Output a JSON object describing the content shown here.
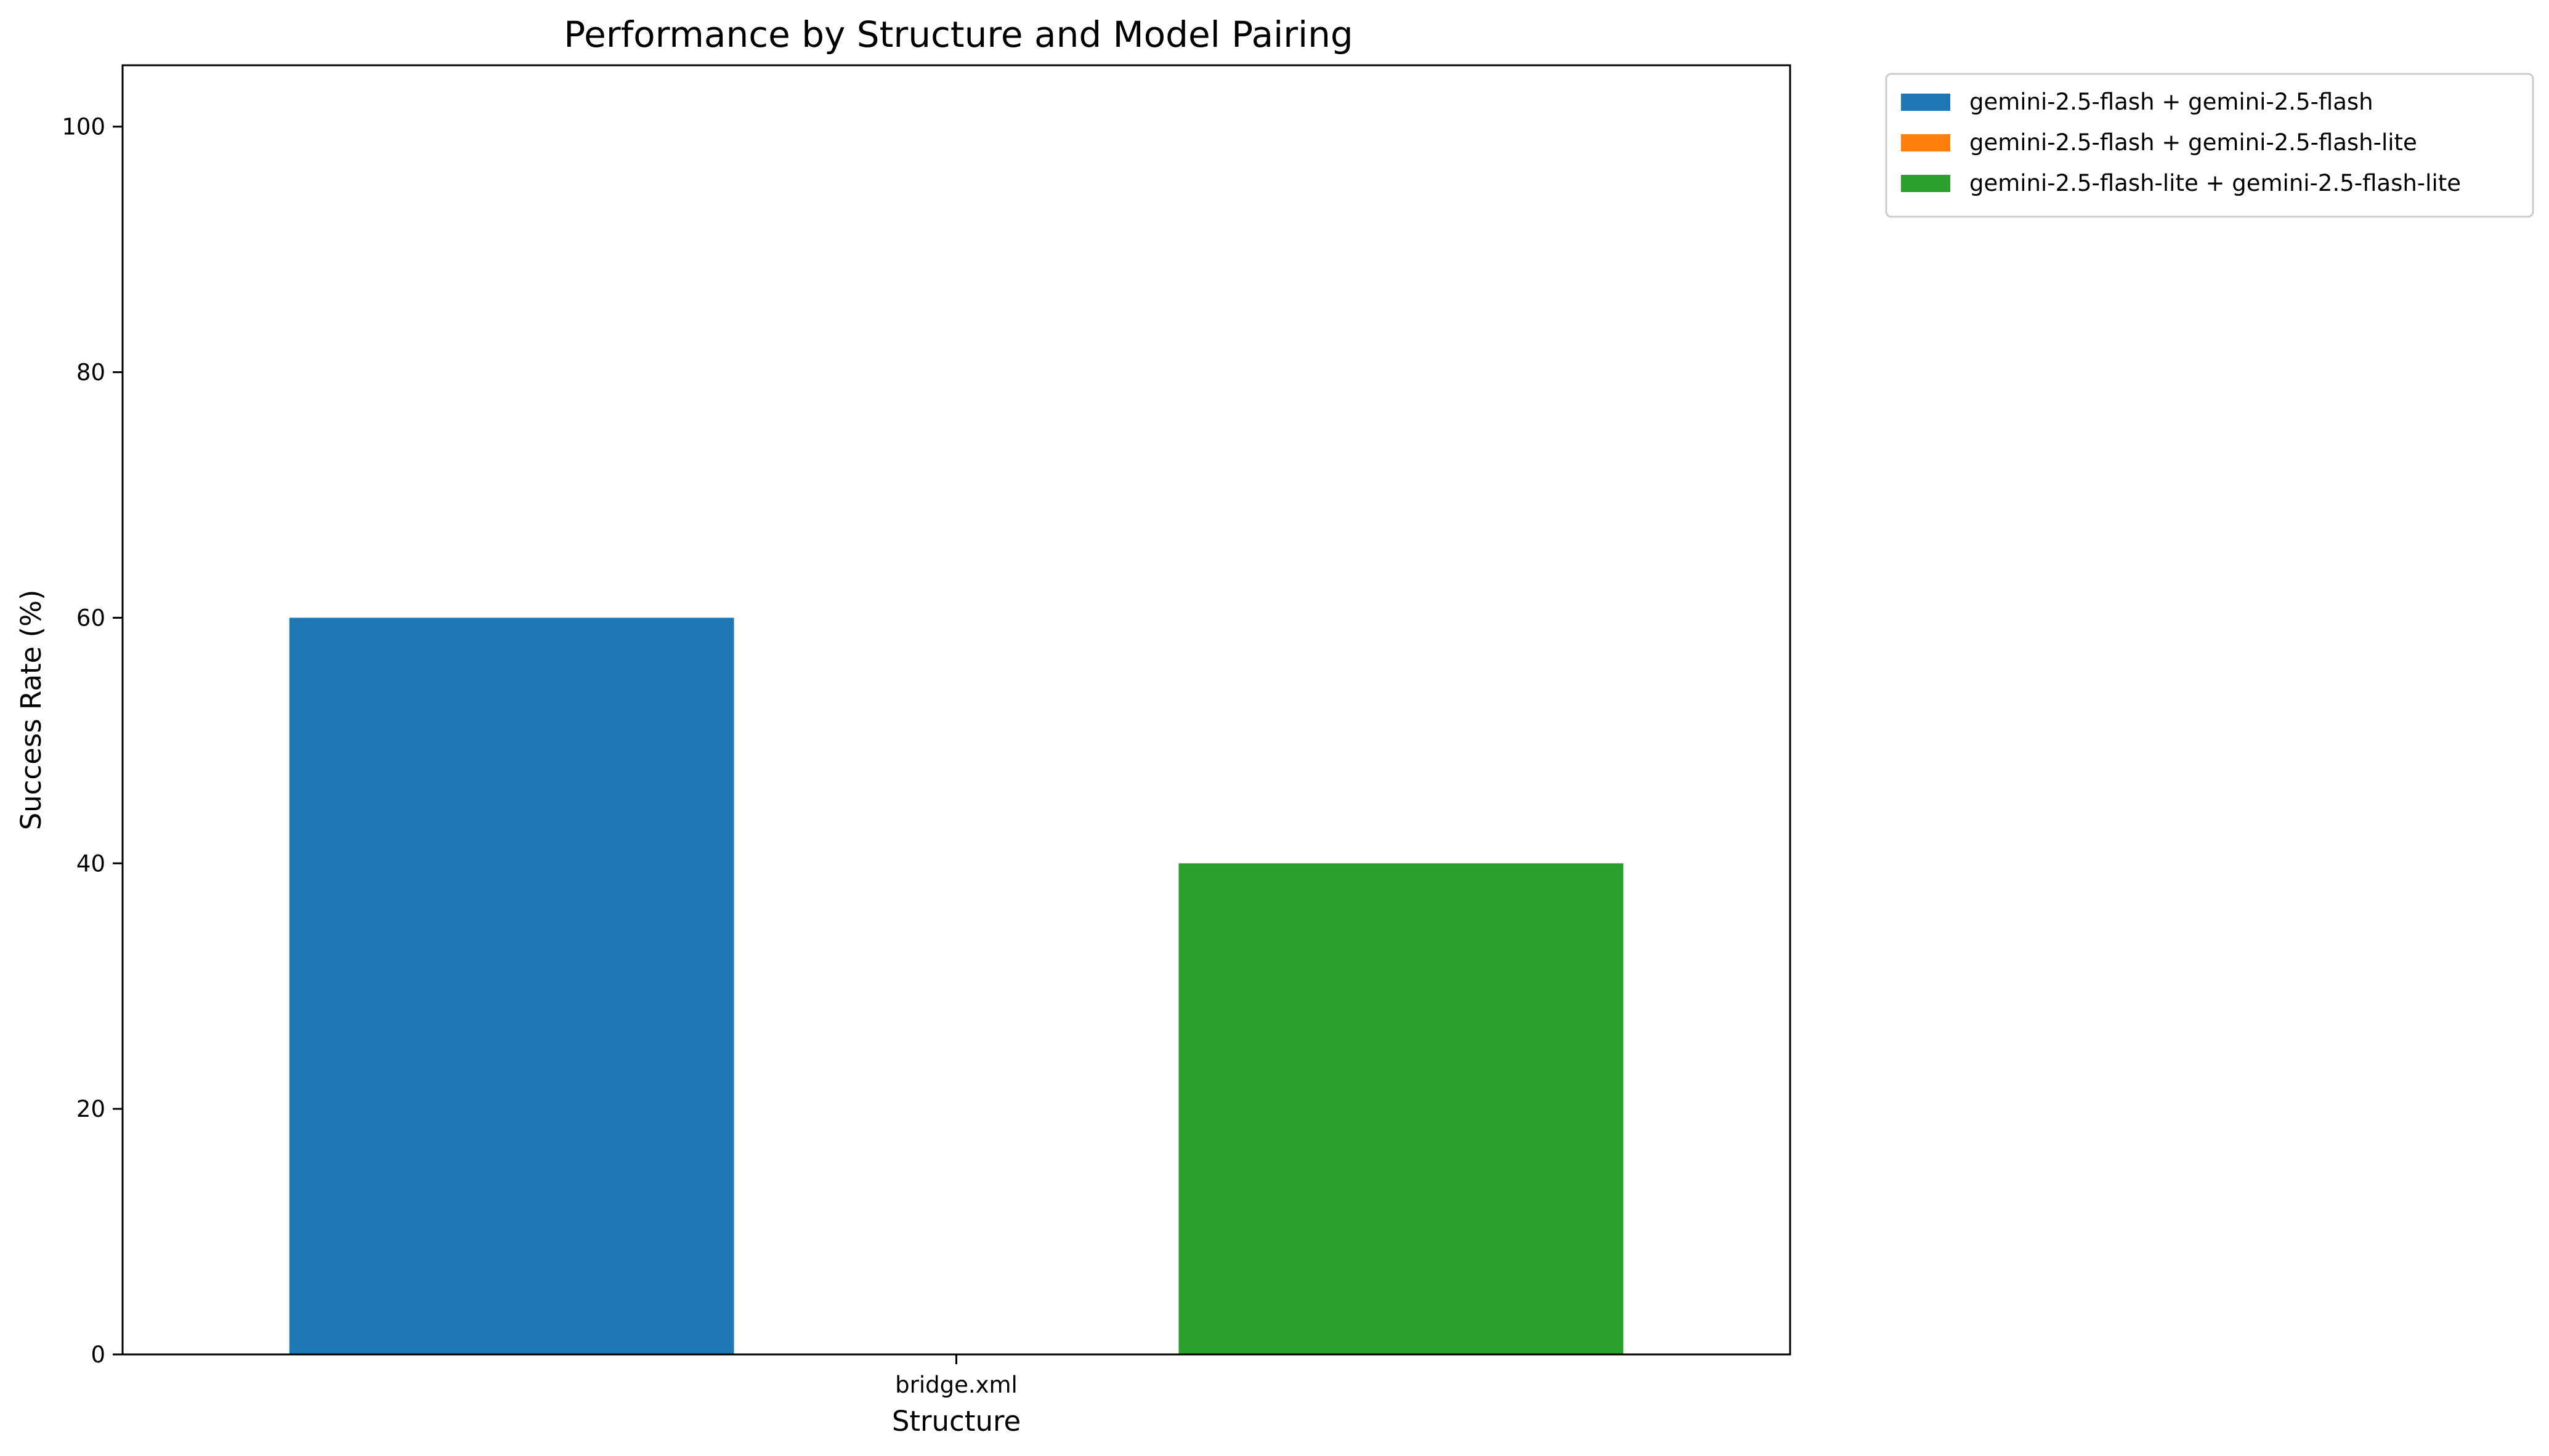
{
  "chart_data": {
    "type": "bar",
    "title": "Performance by Structure and Model Pairing",
    "xlabel": "Structure",
    "ylabel": "Success Rate (%)",
    "categories": [
      "bridge.xml"
    ],
    "ylim": [
      0,
      105
    ],
    "yticks": [
      0,
      20,
      40,
      60,
      80,
      100
    ],
    "grid": false,
    "legend_position": "outside-top-right",
    "series": [
      {
        "name": "gemini-2.5-flash + gemini-2.5-flash",
        "color": "#1f77b4",
        "values": [
          60
        ]
      },
      {
        "name": "gemini-2.5-flash + gemini-2.5-flash-lite",
        "color": "#ff7f0e",
        "values": [
          0
        ]
      },
      {
        "name": "gemini-2.5-flash-lite + gemini-2.5-flash-lite",
        "color": "#2ca02c",
        "values": [
          40
        ]
      }
    ]
  }
}
